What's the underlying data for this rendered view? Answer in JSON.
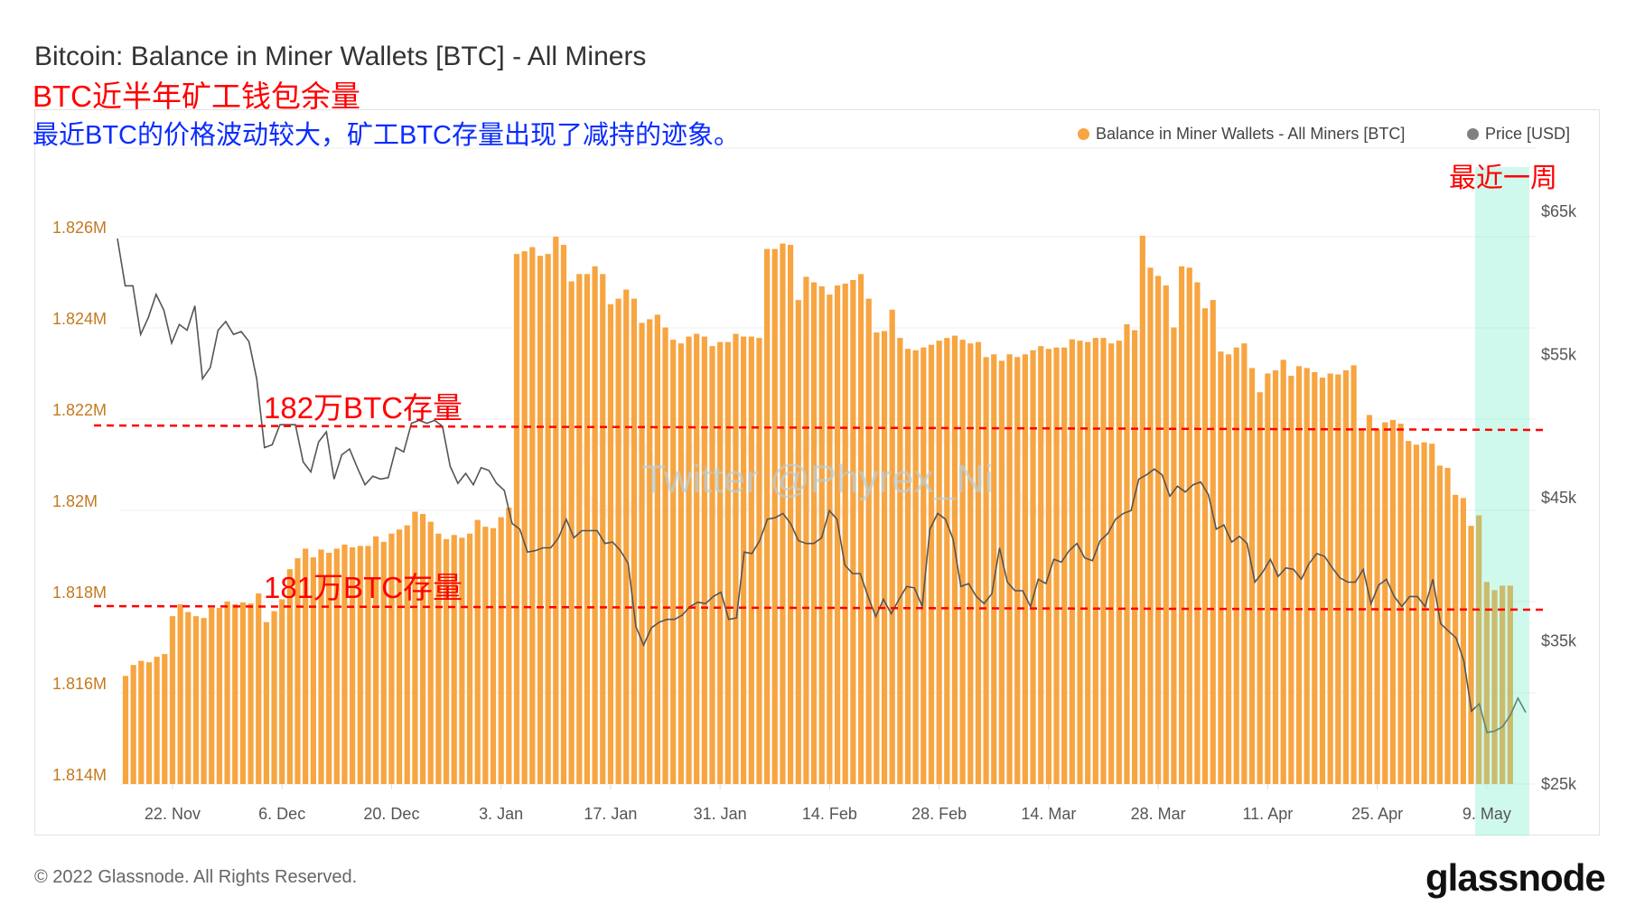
{
  "header": {
    "title": "Bitcoin: Balance in Miner Wallets [BTC] - All Miners",
    "subtitle_red": "BTC近半年矿工钱包余量",
    "note_blue": "最近BTC的价格波动较大，矿工BTC存量出现了减持的迹象。"
  },
  "legend": [
    {
      "label": "Balance in Miner Wallets - All Miners [BTC]",
      "color": "#f7a541"
    },
    {
      "label": "Price [USD]",
      "color": "#808080"
    }
  ],
  "annotations": {
    "line_182": "182万BTC存量",
    "line_181": "181万BTC存量",
    "recent_week": "最近一周",
    "line_color": "#ff0000",
    "highlight_color": "#c8fbe9"
  },
  "watermark": "Twitter @Phyrex_Ni",
  "footer": {
    "copyright": "© 2022 Glassnode. All Rights Reserved.",
    "logo": "glassnode"
  },
  "chart_data": {
    "type": "bar",
    "title": "Bitcoin: Balance in Miner Wallets [BTC] - All Miners",
    "x_ticks": [
      "22. Nov",
      "6. Dec",
      "20. Dec",
      "3. Jan",
      "17. Jan",
      "31. Jan",
      "14. Feb",
      "28. Feb",
      "14. Mar",
      "28. Mar",
      "11. Apr",
      "25. Apr",
      "9. May"
    ],
    "y_left": {
      "ticks": [
        "1.814M",
        "1.816M",
        "1.818M",
        "1.82M",
        "1.822M",
        "1.824M",
        "1.826M"
      ],
      "range_millions": [
        1.814,
        1.826
      ]
    },
    "y_right": {
      "ticks": [
        "$25k",
        "$35k",
        "$45k",
        "$55k",
        "$65k"
      ],
      "range_usd_k": [
        25,
        65
      ]
    },
    "grid": true,
    "legend_position": "top-right",
    "reference_lines_millions": [
      1.822,
      1.818
    ],
    "series": [
      {
        "name": "Balance in Miner Wallets - All Miners [BTC]",
        "type": "bar",
        "unit": "M BTC",
        "values": [
          1.81637,
          1.81661,
          1.8167,
          1.81667,
          1.81679,
          1.81685,
          1.81768,
          1.81794,
          1.81777,
          1.81768,
          1.81764,
          1.81786,
          1.81786,
          1.818,
          1.81794,
          1.81798,
          1.81796,
          1.81818,
          1.81755,
          1.81779,
          1.81805,
          1.81871,
          1.81895,
          1.81916,
          1.81897,
          1.81914,
          1.81907,
          1.81916,
          1.81925,
          1.81919,
          1.81922,
          1.81922,
          1.81943,
          1.81931,
          1.81949,
          1.81958,
          1.81967,
          1.81997,
          1.81992,
          1.81975,
          1.81949,
          1.81937,
          1.81946,
          1.8194,
          1.81949,
          1.81979,
          1.81964,
          1.81961,
          1.81985,
          1.82006,
          1.82562,
          1.82568,
          1.82577,
          1.82558,
          1.82562,
          1.826,
          1.82582,
          1.82502,
          1.82518,
          1.82518,
          1.82535,
          1.82518,
          1.82452,
          1.82464,
          1.82484,
          1.82464,
          1.82411,
          1.82419,
          1.82429,
          1.82401,
          1.82374,
          1.82366,
          1.82381,
          1.82387,
          1.82381,
          1.8236,
          1.82369,
          1.82369,
          1.82387,
          1.82381,
          1.82381,
          1.82378,
          1.82573,
          1.82573,
          1.82585,
          1.82582,
          1.82461,
          1.82512,
          1.825,
          1.82491,
          1.82473,
          1.82493,
          1.82497,
          1.82505,
          1.82518,
          1.82464,
          1.8239,
          1.82393,
          1.8244,
          1.82378,
          1.82354,
          1.82351,
          1.82357,
          1.82363,
          1.82372,
          1.82378,
          1.82383,
          1.82374,
          1.82366,
          1.82369,
          1.82336,
          1.82342,
          1.82328,
          1.82342,
          1.82336,
          1.82342,
          1.82351,
          1.8236,
          1.82354,
          1.82357,
          1.82357,
          1.82375,
          1.82372,
          1.82369,
          1.82378,
          1.82378,
          1.82366,
          1.82372,
          1.82408,
          1.82395,
          1.82602,
          1.82532,
          1.82514,
          1.82493,
          1.82401,
          1.82535,
          1.82532,
          1.825,
          1.82443,
          1.82461,
          1.82348,
          1.82342,
          1.82357,
          1.82366,
          1.82312,
          1.82259,
          1.823,
          1.82307,
          1.8233,
          1.82295,
          1.82316,
          1.82312,
          1.82303,
          1.82291,
          1.823,
          1.82298,
          1.82307,
          1.82318,
          1.82179,
          1.82209,
          1.82179,
          1.82193,
          1.82198,
          1.8219,
          1.82152,
          1.82144,
          1.82149,
          1.82146,
          1.82098,
          1.82093,
          1.82034,
          1.82027,
          1.81966,
          1.81989,
          1.81843,
          1.81825,
          1.81835,
          1.81835
        ]
      },
      {
        "name": "Price [USD]",
        "type": "line",
        "unit": "USD thousands",
        "values": [
          63.1,
          59.8,
          59.8,
          56.4,
          57.6,
          59.2,
          58.1,
          55.8,
          57.1,
          56.7,
          58.4,
          53.3,
          54.1,
          56.7,
          57.3,
          56.4,
          56.6,
          55.9,
          53.3,
          48.5,
          48.7,
          50.1,
          50.1,
          50.1,
          47.5,
          46.8,
          48.9,
          49.6,
          46.3,
          48.0,
          48.4,
          47.1,
          45.9,
          46.5,
          46.3,
          46.4,
          48.5,
          48.2,
          50.2,
          50.4,
          50.2,
          50.4,
          50.0,
          47.2,
          46.0,
          46.7,
          45.9,
          47.1,
          46.9,
          46.0,
          45.5,
          43.2,
          42.8,
          41.2,
          41.3,
          41.5,
          41.5,
          42.2,
          43.5,
          42.2,
          42.7,
          42.7,
          42.7,
          41.8,
          41.9,
          41.3,
          40.4,
          36.0,
          34.7,
          35.9,
          36.3,
          36.5,
          36.5,
          36.8,
          37.4,
          37.7,
          37.6,
          38.1,
          38.4,
          36.5,
          36.6,
          41.2,
          41.1,
          42.0,
          43.5,
          43.6,
          43.9,
          43.2,
          42.0,
          41.8,
          41.8,
          42.2,
          44.1,
          43.5,
          40.3,
          39.7,
          39.7,
          38.1,
          36.7,
          37.9,
          36.9,
          37.9,
          38.8,
          38.7,
          37.4,
          42.8,
          43.9,
          43.5,
          42.1,
          38.8,
          39.0,
          38.1,
          37.6,
          38.3,
          41.5,
          39.1,
          38.5,
          38.5,
          37.4,
          39.3,
          39.0,
          40.7,
          40.5,
          41.3,
          41.8,
          40.8,
          40.6,
          42.0,
          42.5,
          43.5,
          43.9,
          44.1,
          46.3,
          46.6,
          47.0,
          46.6,
          45.1,
          45.8,
          45.4,
          45.9,
          46.1,
          45.2,
          42.8,
          43.1,
          41.9,
          42.3,
          41.8,
          39.1,
          39.8,
          40.7,
          39.5,
          40.1,
          40.0,
          39.3,
          40.4,
          41.1,
          40.9,
          40.1,
          39.4,
          39.1,
          39.1,
          40.0,
          37.6,
          38.9,
          39.3,
          38.1,
          37.4,
          38.1,
          38.1,
          37.4,
          39.3,
          36.2,
          35.7,
          35.2,
          33.6,
          30.1,
          30.6,
          28.6,
          28.7,
          29.0,
          29.8,
          31.0,
          30.0
        ]
      }
    ]
  }
}
